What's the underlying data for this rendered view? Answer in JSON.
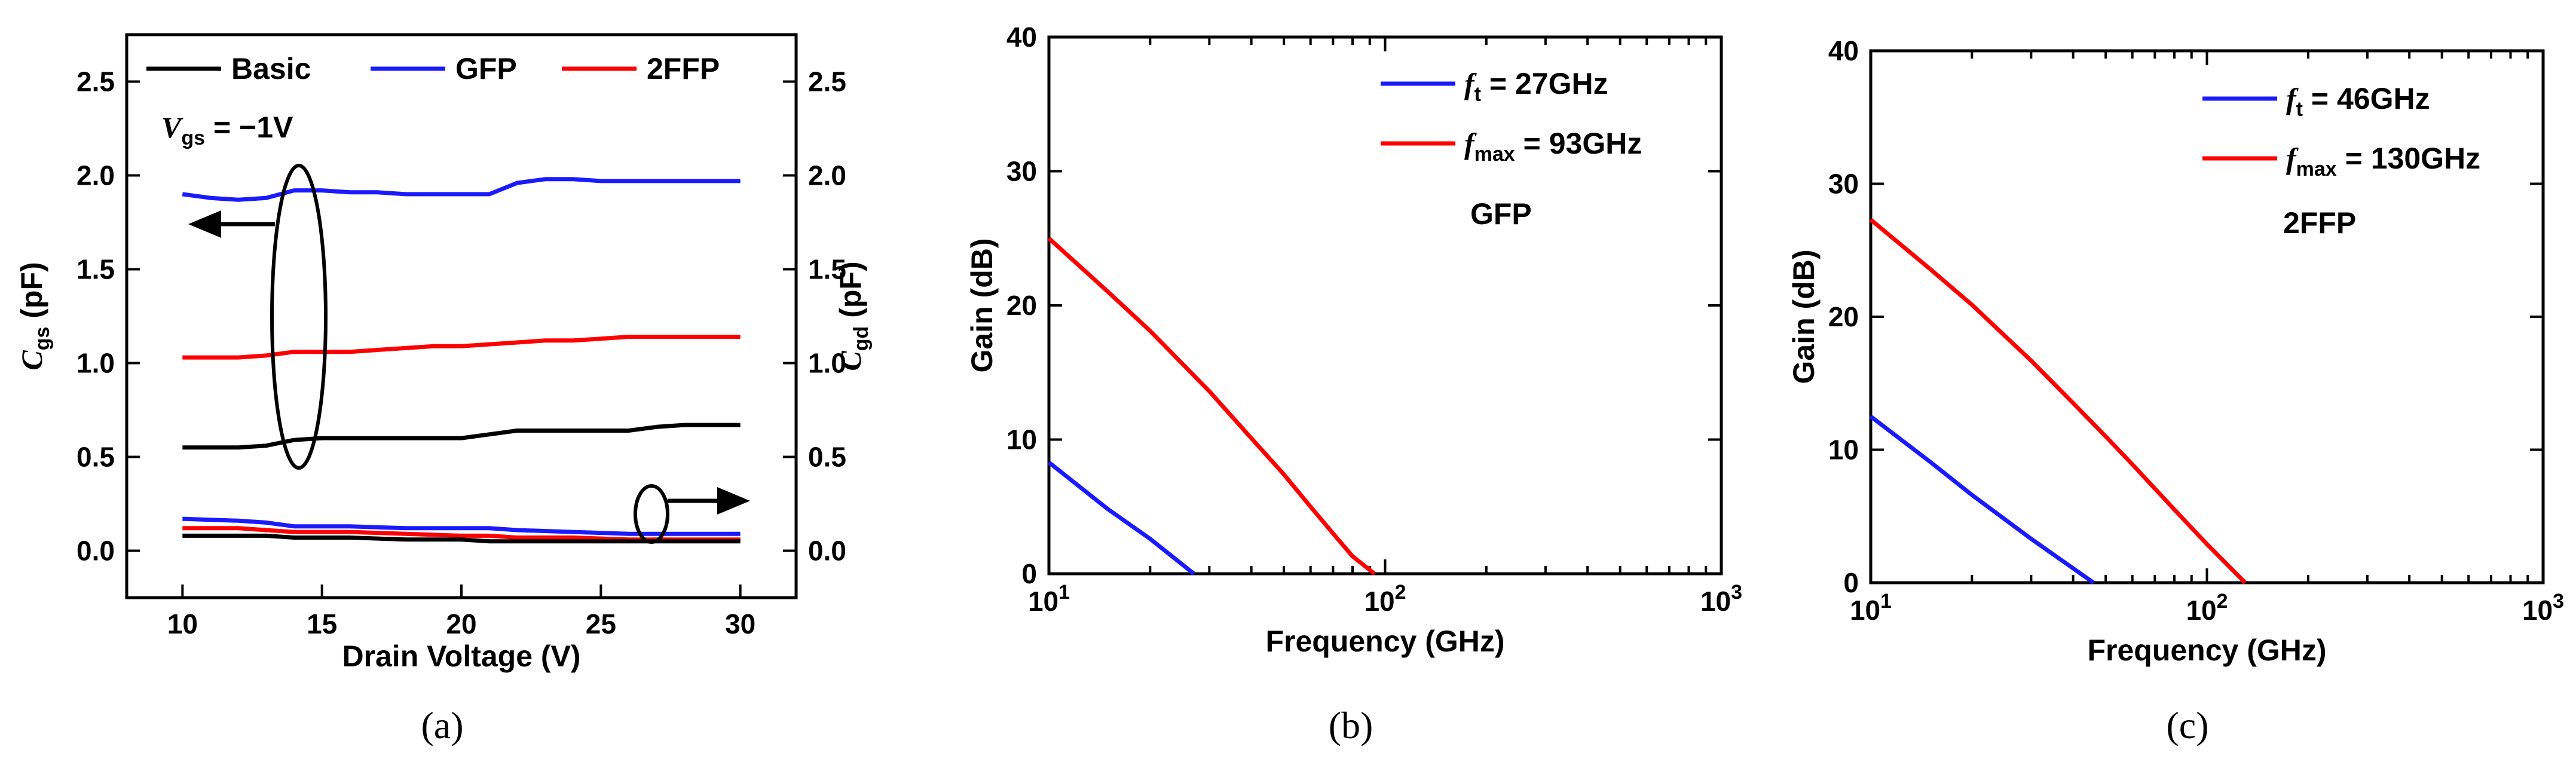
{
  "colors": {
    "basic": "#000000",
    "gfp": "#1a1aff",
    "ffp2": "#ff0000"
  },
  "captions": {
    "a": "(a)",
    "b": "(b)",
    "c": "(c)"
  },
  "chart_data": [
    {
      "id": "a",
      "type": "line",
      "xlabel": "Drain Voltage (V)",
      "ylabel_left": {
        "main": "C",
        "sub": "gs",
        "unit": " (pF)"
      },
      "ylabel_right": {
        "main": "C",
        "sub": "gd",
        "unit": " (pF)"
      },
      "xlim": [
        8,
        32
      ],
      "ylim": [
        -0.25,
        2.75
      ],
      "xticks": [
        "10",
        "15",
        "20",
        "25",
        "30"
      ],
      "yticks": [
        "0.0",
        "0.5",
        "1.0",
        "1.5",
        "2.0",
        "2.5"
      ],
      "annotation": {
        "var": "V",
        "sub": "gs",
        "text": " = −1V"
      },
      "legend": [
        {
          "name": "Basic",
          "color": "#000000"
        },
        {
          "name": "GFP",
          "color": "#1a1aff"
        },
        {
          "name": "2FFP",
          "color": "#ff0000"
        }
      ],
      "series": [
        {
          "name": "Basic Cgs",
          "color": "#000000",
          "x": [
            10,
            11,
            12,
            13,
            14,
            15,
            16,
            17,
            18,
            19,
            20,
            21,
            22,
            23,
            24,
            25,
            26,
            27,
            28,
            29,
            30
          ],
          "y": [
            0.55,
            0.55,
            0.55,
            0.56,
            0.59,
            0.6,
            0.6,
            0.6,
            0.6,
            0.6,
            0.6,
            0.62,
            0.64,
            0.64,
            0.64,
            0.64,
            0.64,
            0.66,
            0.67,
            0.67,
            0.67
          ]
        },
        {
          "name": "GFP Cgs",
          "color": "#1a1aff",
          "x": [
            10,
            11,
            12,
            13,
            14,
            15,
            16,
            17,
            18,
            19,
            20,
            21,
            22,
            23,
            24,
            25,
            26,
            27,
            28,
            29,
            30
          ],
          "y": [
            1.9,
            1.88,
            1.87,
            1.88,
            1.92,
            1.92,
            1.91,
            1.91,
            1.9,
            1.9,
            1.9,
            1.9,
            1.96,
            1.98,
            1.98,
            1.97,
            1.97,
            1.97,
            1.97,
            1.97,
            1.97
          ]
        },
        {
          "name": "2FFP Cgs",
          "color": "#ff0000",
          "x": [
            10,
            11,
            12,
            13,
            14,
            15,
            16,
            17,
            18,
            19,
            20,
            21,
            22,
            23,
            24,
            25,
            26,
            27,
            28,
            29,
            30
          ],
          "y": [
            1.03,
            1.03,
            1.03,
            1.04,
            1.06,
            1.06,
            1.06,
            1.07,
            1.08,
            1.09,
            1.09,
            1.1,
            1.11,
            1.12,
            1.12,
            1.13,
            1.14,
            1.14,
            1.14,
            1.14,
            1.14
          ]
        },
        {
          "name": "GFP Cgd",
          "color": "#1a1aff",
          "x": [
            10,
            12,
            13,
            14,
            16,
            18,
            20,
            21,
            22,
            24,
            26,
            28,
            30
          ],
          "y": [
            0.17,
            0.16,
            0.15,
            0.13,
            0.13,
            0.12,
            0.12,
            0.12,
            0.11,
            0.1,
            0.09,
            0.09,
            0.09
          ]
        },
        {
          "name": "2FFP Cgd",
          "color": "#ff0000",
          "x": [
            10,
            12,
            13,
            14,
            16,
            18,
            20,
            21,
            22,
            24,
            26,
            28,
            30
          ],
          "y": [
            0.12,
            0.12,
            0.11,
            0.1,
            0.1,
            0.09,
            0.08,
            0.08,
            0.07,
            0.07,
            0.06,
            0.06,
            0.06
          ]
        },
        {
          "name": "Basic Cgd",
          "color": "#000000",
          "x": [
            10,
            12,
            13,
            14,
            16,
            18,
            20,
            21,
            22,
            24,
            26,
            28,
            30
          ],
          "y": [
            0.08,
            0.08,
            0.08,
            0.07,
            0.07,
            0.06,
            0.06,
            0.05,
            0.05,
            0.05,
            0.05,
            0.05,
            0.05
          ]
        }
      ]
    },
    {
      "id": "b",
      "type": "line",
      "xscale": "log",
      "xlabel": "Frequency (GHz)",
      "ylabel": "Gain (dB)",
      "xlim": [
        10,
        1000
      ],
      "ylim": [
        0,
        40
      ],
      "xticks": [
        {
          "base": "10",
          "exp": "1"
        },
        {
          "base": "10",
          "exp": "2"
        },
        {
          "base": "10",
          "exp": "3"
        }
      ],
      "yticks": [
        "0",
        "10",
        "20",
        "30",
        "40"
      ],
      "label": "GFP",
      "legend": [
        {
          "var": "f",
          "sub": "t",
          "text": "= 27GHz",
          "color": "#1a1aff"
        },
        {
          "var": "f",
          "sub": "max",
          "text": "= 93GHz",
          "color": "#ff0000"
        }
      ],
      "series": [
        {
          "name": "ft",
          "color": "#1a1aff",
          "x": [
            10,
            15,
            20,
            27
          ],
          "y": [
            8.3,
            4.8,
            2.6,
            0
          ]
        },
        {
          "name": "fmax",
          "color": "#ff0000",
          "x": [
            10,
            15,
            20,
            30,
            40,
            50,
            60,
            70,
            80,
            93
          ],
          "y": [
            25,
            21,
            18.1,
            13.6,
            10.1,
            7.4,
            5,
            3,
            1.3,
            0
          ]
        }
      ]
    },
    {
      "id": "c",
      "type": "line",
      "xscale": "log",
      "xlabel": "Frequency (GHz)",
      "ylabel": "Gain (dB)",
      "xlim": [
        10,
        1000
      ],
      "ylim": [
        0,
        40
      ],
      "xticks": [
        {
          "base": "10",
          "exp": "1"
        },
        {
          "base": "10",
          "exp": "2"
        },
        {
          "base": "10",
          "exp": "3"
        }
      ],
      "yticks": [
        "0",
        "10",
        "20",
        "30",
        "40"
      ],
      "label": "2FFP",
      "legend": [
        {
          "var": "f",
          "sub": "t",
          "text": "= 46GHz",
          "color": "#1a1aff"
        },
        {
          "var": "f",
          "sub": "max",
          "text": "= 130GHz",
          "color": "#ff0000"
        }
      ],
      "series": [
        {
          "name": "ft",
          "color": "#1a1aff",
          "x": [
            10,
            15,
            20,
            30,
            46
          ],
          "y": [
            12.5,
            9.1,
            6.6,
            3.3,
            0
          ]
        },
        {
          "name": "fmax",
          "color": "#ff0000",
          "x": [
            10,
            15,
            20,
            30,
            40,
            50,
            60,
            80,
            100,
            130
          ],
          "y": [
            27.3,
            23.6,
            20.9,
            16.7,
            13.5,
            11,
            8.9,
            5.5,
            2.9,
            0
          ]
        }
      ]
    }
  ]
}
